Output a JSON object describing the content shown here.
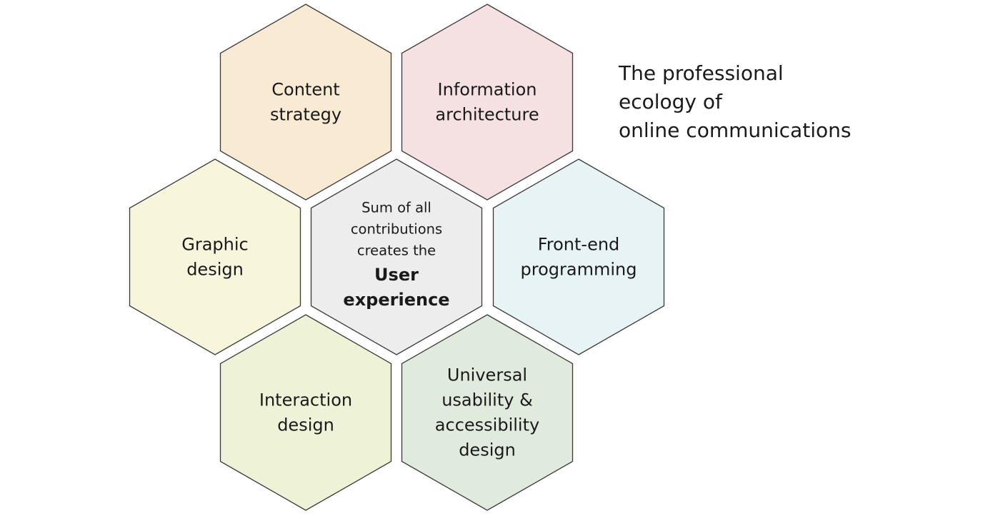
{
  "title_lines": [
    "The professional",
    "ecology of",
    "online communications"
  ],
  "hexagons": [
    {
      "id": "content-strategy",
      "lines": [
        "Content",
        "strategy"
      ],
      "fill": "#f9ebd3"
    },
    {
      "id": "information-architecture",
      "lines": [
        "Information",
        "architecture"
      ],
      "fill": "#f5e0e2"
    },
    {
      "id": "graphic-design",
      "lines": [
        "Graphic",
        "design"
      ],
      "fill": "#f7f5db"
    },
    {
      "id": "front-end-programming",
      "lines": [
        "Front-end",
        "programming"
      ],
      "fill": "#e7f3f4"
    },
    {
      "id": "interaction-design",
      "lines": [
        "Interaction",
        "design"
      ],
      "fill": "#eef2d7"
    },
    {
      "id": "universal-usability",
      "lines": [
        "Universal",
        "usability &",
        "accessibility",
        "design"
      ],
      "fill": "#e1ebdd"
    }
  ],
  "center": {
    "small_lines": [
      "Sum of all",
      "contributions",
      "creates the"
    ],
    "bold_lines": [
      "User",
      "experience"
    ],
    "fill": "#ededed"
  },
  "colors": {
    "stroke": "#3a3a3a",
    "text": "#1a1a1a"
  }
}
